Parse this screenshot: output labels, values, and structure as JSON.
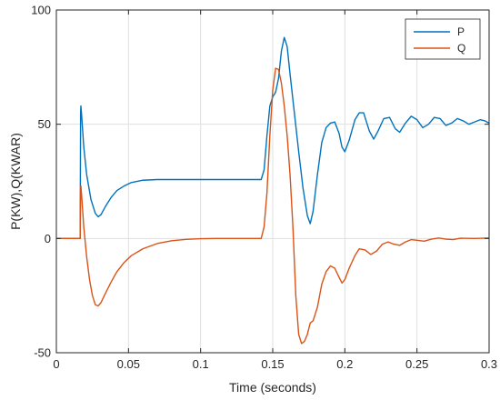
{
  "chart_data": {
    "type": "line",
    "xlabel": "Time (seconds)",
    "ylabel": "P(KW),Q(KWAR)",
    "xlim": [
      0,
      0.3
    ],
    "ylim": [
      -50,
      100
    ],
    "xticks": [
      "0",
      "0.05",
      "0.1",
      "0.15",
      "0.2",
      "0.25",
      "0.3"
    ],
    "xtick_values": [
      0,
      0.05,
      0.1,
      0.15,
      0.2,
      0.25,
      0.3
    ],
    "yticks": [
      "-50",
      "0",
      "50",
      "100"
    ],
    "ytick_values": [
      -50,
      0,
      50,
      100
    ],
    "grid": true,
    "legend_position": "top-right",
    "series": [
      {
        "name": "P",
        "color": "#0072BD",
        "points": [
          [
            0,
            0
          ],
          [
            0.0165,
            0
          ],
          [
            0.0168,
            55
          ],
          [
            0.017,
            58
          ],
          [
            0.0175,
            54
          ],
          [
            0.019,
            40
          ],
          [
            0.021,
            28
          ],
          [
            0.024,
            17
          ],
          [
            0.027,
            11
          ],
          [
            0.029,
            9.5
          ],
          [
            0.031,
            10.5
          ],
          [
            0.034,
            14
          ],
          [
            0.038,
            18
          ],
          [
            0.042,
            21
          ],
          [
            0.047,
            23
          ],
          [
            0.052,
            24.5
          ],
          [
            0.06,
            25.5
          ],
          [
            0.07,
            25.8
          ],
          [
            0.09,
            25.8
          ],
          [
            0.11,
            25.8
          ],
          [
            0.13,
            25.8
          ],
          [
            0.142,
            25.8
          ],
          [
            0.144,
            30
          ],
          [
            0.146,
            45
          ],
          [
            0.148,
            58
          ],
          [
            0.15,
            62
          ],
          [
            0.152,
            64
          ],
          [
            0.154,
            70
          ],
          [
            0.156,
            82
          ],
          [
            0.158,
            88
          ],
          [
            0.16,
            84
          ],
          [
            0.162,
            72
          ],
          [
            0.165,
            55
          ],
          [
            0.168,
            38
          ],
          [
            0.171,
            22
          ],
          [
            0.174,
            10
          ],
          [
            0.176,
            6.5
          ],
          [
            0.178,
            12
          ],
          [
            0.181,
            28
          ],
          [
            0.184,
            42
          ],
          [
            0.187,
            48.5
          ],
          [
            0.19,
            50.5
          ],
          [
            0.193,
            51
          ],
          [
            0.196,
            46
          ],
          [
            0.198,
            40
          ],
          [
            0.2,
            38
          ],
          [
            0.203,
            43
          ],
          [
            0.207,
            52
          ],
          [
            0.21,
            55
          ],
          [
            0.213,
            55
          ],
          [
            0.217,
            47
          ],
          [
            0.22,
            43.5
          ],
          [
            0.223,
            47
          ],
          [
            0.227,
            52.5
          ],
          [
            0.231,
            53
          ],
          [
            0.235,
            48
          ],
          [
            0.238,
            46.5
          ],
          [
            0.242,
            50.5
          ],
          [
            0.246,
            53.5
          ],
          [
            0.25,
            52
          ],
          [
            0.254,
            48.5
          ],
          [
            0.258,
            50
          ],
          [
            0.262,
            53
          ],
          [
            0.266,
            52.5
          ],
          [
            0.27,
            49.5
          ],
          [
            0.274,
            50.5
          ],
          [
            0.278,
            52.5
          ],
          [
            0.282,
            51.5
          ],
          [
            0.286,
            50
          ],
          [
            0.29,
            51
          ],
          [
            0.294,
            52
          ],
          [
            0.297,
            51.5
          ],
          [
            0.3,
            50.5
          ]
        ]
      },
      {
        "name": "Q",
        "color": "#D95319",
        "points": [
          [
            0,
            0
          ],
          [
            0.0165,
            0
          ],
          [
            0.0168,
            20
          ],
          [
            0.017,
            23
          ],
          [
            0.0175,
            19
          ],
          [
            0.019,
            5
          ],
          [
            0.021,
            -8
          ],
          [
            0.023,
            -18
          ],
          [
            0.025,
            -25
          ],
          [
            0.027,
            -29
          ],
          [
            0.029,
            -29.5
          ],
          [
            0.031,
            -28
          ],
          [
            0.034,
            -24
          ],
          [
            0.038,
            -19
          ],
          [
            0.042,
            -14.5
          ],
          [
            0.047,
            -10.5
          ],
          [
            0.052,
            -7.5
          ],
          [
            0.06,
            -4.5
          ],
          [
            0.07,
            -2.2
          ],
          [
            0.08,
            -1
          ],
          [
            0.09,
            -0.4
          ],
          [
            0.1,
            -0.1
          ],
          [
            0.11,
            0
          ],
          [
            0.142,
            0
          ],
          [
            0.144,
            5
          ],
          [
            0.146,
            20
          ],
          [
            0.148,
            45
          ],
          [
            0.15,
            65
          ],
          [
            0.152,
            74.5
          ],
          [
            0.154,
            74
          ],
          [
            0.156,
            68
          ],
          [
            0.158,
            58
          ],
          [
            0.16,
            45
          ],
          [
            0.162,
            28
          ],
          [
            0.164,
            5
          ],
          [
            0.166,
            -25
          ],
          [
            0.168,
            -42
          ],
          [
            0.17,
            -46
          ],
          [
            0.172,
            -45
          ],
          [
            0.174,
            -42
          ],
          [
            0.176,
            -37
          ],
          [
            0.178,
            -36
          ],
          [
            0.181,
            -30
          ],
          [
            0.184,
            -20
          ],
          [
            0.187,
            -14.5
          ],
          [
            0.19,
            -12
          ],
          [
            0.193,
            -13
          ],
          [
            0.196,
            -17
          ],
          [
            0.198,
            -19.5
          ],
          [
            0.2,
            -18
          ],
          [
            0.203,
            -13
          ],
          [
            0.207,
            -7.5
          ],
          [
            0.21,
            -4.5
          ],
          [
            0.214,
            -5
          ],
          [
            0.218,
            -7
          ],
          [
            0.222,
            -5.5
          ],
          [
            0.226,
            -2.5
          ],
          [
            0.23,
            -1.5
          ],
          [
            0.234,
            -2.5
          ],
          [
            0.238,
            -3
          ],
          [
            0.242,
            -1.5
          ],
          [
            0.246,
            -0.5
          ],
          [
            0.25,
            -0.8
          ],
          [
            0.255,
            -1.2
          ],
          [
            0.26,
            -0.3
          ],
          [
            0.265,
            0.2
          ],
          [
            0.27,
            -0.3
          ],
          [
            0.275,
            -0.5
          ],
          [
            0.28,
            0.1
          ],
          [
            0.29,
            0
          ],
          [
            0.3,
            0.2
          ]
        ]
      }
    ]
  }
}
